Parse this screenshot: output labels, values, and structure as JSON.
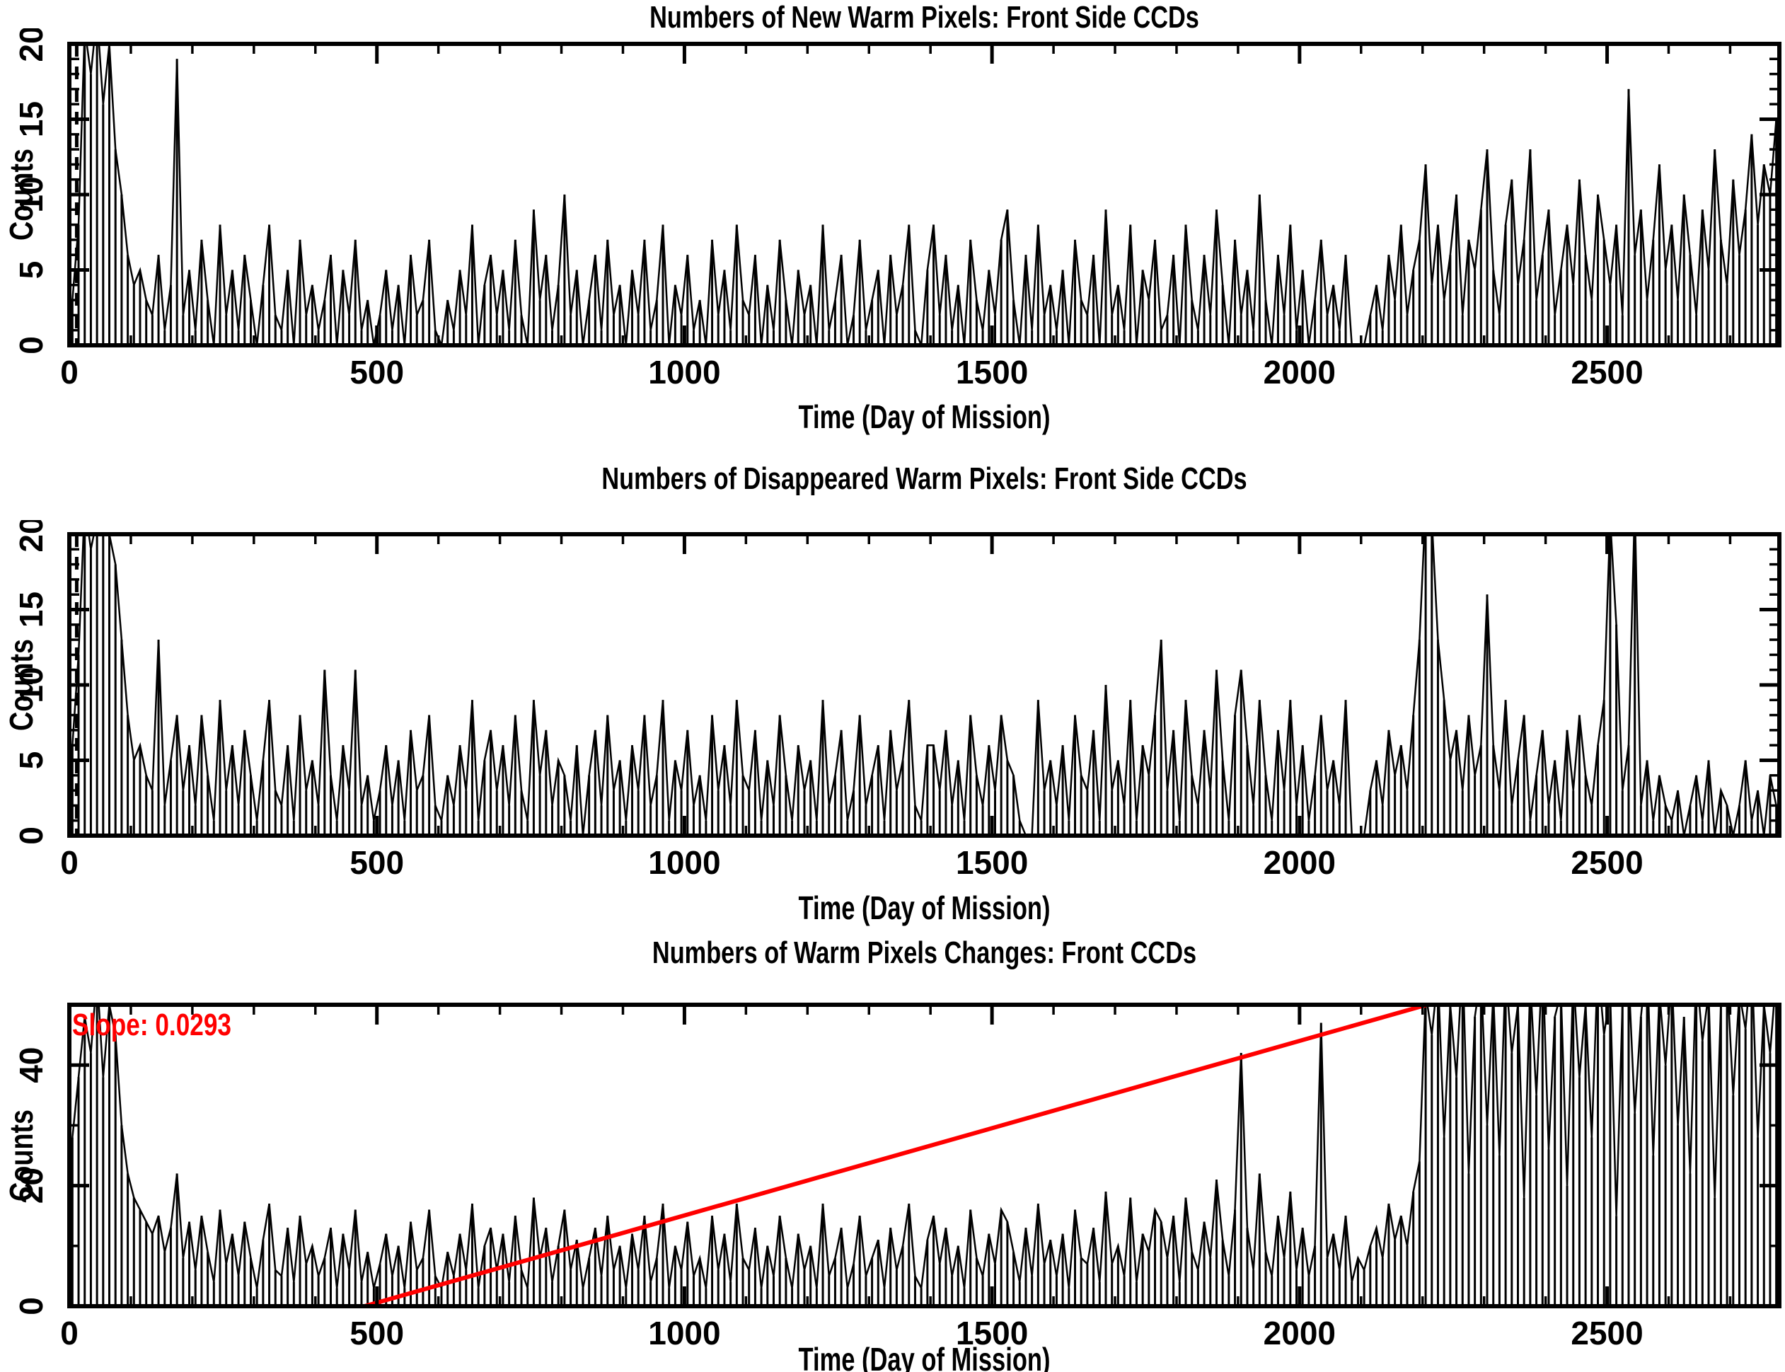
{
  "page": {
    "background": "#ffffff",
    "text_color": "#000000"
  },
  "chart_data": [
    {
      "type": "line",
      "title": "Numbers of New Warm Pixels: Front Side CCDs",
      "xlabel": "Time (Day of Mission)",
      "ylabel": "Counts",
      "xlim": [
        0,
        2780
      ],
      "ylim": [
        0,
        20
      ],
      "xticks": [
        0,
        500,
        1000,
        1500,
        2000,
        2500
      ],
      "x_minor_step": 100,
      "yticks": [
        0,
        5,
        10,
        15,
        20
      ],
      "y_minor_step": 1,
      "grid": false,
      "legend": "none",
      "dashed_guide_x": 12,
      "series_color": "#000000",
      "x_start": 5,
      "x_step": 10,
      "values": [
        3,
        8,
        21,
        18,
        22,
        16,
        20,
        13,
        10,
        6,
        4,
        5,
        3,
        2,
        6,
        1,
        4,
        19,
        2,
        5,
        1,
        7,
        3,
        0,
        8,
        2,
        5,
        1,
        6,
        3,
        0,
        4,
        8,
        2,
        1,
        5,
        0,
        7,
        2,
        4,
        1,
        3,
        6,
        0,
        5,
        2,
        7,
        1,
        3,
        0,
        2,
        5,
        1,
        4,
        0,
        6,
        2,
        3,
        7,
        1,
        0,
        3,
        1,
        5,
        2,
        8,
        0,
        4,
        6,
        2,
        5,
        1,
        7,
        2,
        0,
        9,
        3,
        6,
        1,
        4,
        10,
        2,
        5,
        0,
        3,
        6,
        1,
        7,
        2,
        4,
        0,
        5,
        2,
        7,
        1,
        3,
        8,
        0,
        4,
        2,
        6,
        1,
        3,
        0,
        7,
        2,
        5,
        1,
        8,
        3,
        2,
        6,
        0,
        4,
        1,
        7,
        3,
        0,
        5,
        2,
        4,
        0,
        8,
        1,
        3,
        6,
        0,
        2,
        7,
        1,
        3,
        5,
        0,
        6,
        2,
        4,
        8,
        1,
        0,
        5,
        8,
        2,
        6,
        1,
        4,
        0,
        7,
        3,
        1,
        5,
        2,
        7,
        9,
        3,
        0,
        6,
        1,
        8,
        2,
        4,
        1,
        5,
        0,
        7,
        3,
        2,
        6,
        0,
        9,
        2,
        4,
        1,
        8,
        0,
        5,
        3,
        7,
        1,
        2,
        6,
        0,
        8,
        3,
        1,
        6,
        2,
        9,
        4,
        0,
        7,
        2,
        5,
        1,
        10,
        3,
        0,
        6,
        2,
        8,
        1,
        5,
        0,
        3,
        7,
        2,
        4,
        1,
        6,
        0,
        0,
        0,
        2,
        4,
        1,
        6,
        3,
        8,
        2,
        5,
        7,
        12,
        4,
        8,
        3,
        6,
        10,
        2,
        7,
        5,
        9,
        13,
        5,
        2,
        8,
        11,
        4,
        7,
        13,
        3,
        6,
        9,
        2,
        5,
        8,
        4,
        11,
        6,
        3,
        10,
        7,
        4,
        8,
        2,
        17,
        6,
        9,
        3,
        7,
        12,
        5,
        8,
        3,
        10,
        6,
        2,
        9,
        5,
        13,
        7,
        4,
        11,
        6,
        9,
        14,
        8,
        12,
        10,
        15
      ]
    },
    {
      "type": "line",
      "title": "Numbers of Disappeared Warm Pixels: Front Side CCDs",
      "xlabel": "Time (Day of Mission)",
      "ylabel": "Counts",
      "xlim": [
        0,
        2780
      ],
      "ylim": [
        0,
        20
      ],
      "xticks": [
        0,
        500,
        1000,
        1500,
        2000,
        2500
      ],
      "x_minor_step": 100,
      "yticks": [
        0,
        5,
        10,
        15,
        20
      ],
      "y_minor_step": 1,
      "grid": false,
      "legend": "none",
      "dashed_guide_x": 12,
      "series_color": "#000000",
      "x_start": 5,
      "x_step": 10,
      "values": [
        6,
        12,
        22,
        19,
        21,
        25,
        20,
        18,
        13,
        8,
        5,
        6,
        4,
        3,
        13,
        2,
        5,
        8,
        3,
        6,
        2,
        8,
        4,
        1,
        9,
        3,
        6,
        2,
        7,
        4,
        1,
        5,
        9,
        3,
        2,
        6,
        1,
        8,
        3,
        5,
        2,
        11,
        4,
        1,
        6,
        3,
        11,
        2,
        4,
        1,
        3,
        6,
        2,
        5,
        1,
        7,
        3,
        4,
        8,
        2,
        1,
        4,
        2,
        6,
        3,
        9,
        1,
        5,
        7,
        3,
        6,
        2,
        8,
        3,
        1,
        9,
        4,
        7,
        2,
        5,
        4,
        1,
        6,
        0,
        4,
        7,
        2,
        8,
        3,
        5,
        1,
        6,
        3,
        8,
        2,
        4,
        9,
        1,
        5,
        3,
        7,
        2,
        4,
        1,
        8,
        3,
        6,
        2,
        9,
        4,
        3,
        7,
        1,
        5,
        2,
        8,
        4,
        1,
        6,
        3,
        5,
        1,
        9,
        2,
        4,
        7,
        1,
        3,
        8,
        2,
        4,
        6,
        1,
        7,
        3,
        5,
        9,
        2,
        1,
        6,
        6,
        3,
        7,
        2,
        5,
        1,
        8,
        4,
        2,
        6,
        3,
        8,
        5,
        4,
        1,
        0,
        0,
        9,
        3,
        5,
        2,
        6,
        1,
        8,
        4,
        3,
        7,
        1,
        10,
        3,
        5,
        2,
        9,
        1,
        6,
        4,
        8,
        13,
        3,
        7,
        1,
        9,
        4,
        2,
        7,
        3,
        11,
        5,
        1,
        8,
        11,
        6,
        2,
        9,
        4,
        1,
        7,
        3,
        9,
        2,
        6,
        1,
        4,
        8,
        3,
        5,
        2,
        9,
        0,
        0,
        0,
        3,
        5,
        2,
        7,
        4,
        6,
        3,
        8,
        13,
        22,
        21,
        13,
        9,
        5,
        7,
        3,
        8,
        4,
        6,
        16,
        6,
        3,
        9,
        2,
        5,
        8,
        1,
        4,
        7,
        2,
        5,
        1,
        7,
        3,
        8,
        4,
        2,
        6,
        9,
        21,
        14,
        3,
        6,
        22,
        2,
        5,
        1,
        4,
        2,
        1,
        3,
        0,
        2,
        4,
        1,
        5,
        0,
        3,
        2,
        0,
        2,
        5,
        1,
        3,
        0,
        4,
        2
      ]
    },
    {
      "type": "line",
      "title": "Numbers of Warm Pixels Changes: Front CCDs",
      "xlabel": "Time (Day of Mission)",
      "ylabel": "Counts",
      "xlim": [
        0,
        2780
      ],
      "ylim": [
        0,
        50
      ],
      "xticks": [
        0,
        500,
        1000,
        1500,
        2000,
        2500
      ],
      "x_minor_step": 100,
      "yticks": [
        0,
        20,
        40
      ],
      "y_minor_step": 10,
      "grid": false,
      "legend": "none",
      "series_color": "#000000",
      "fit_line": {
        "label": "Slope: 0.0293",
        "slope": 0.0293,
        "color": "#ff0000",
        "x0": 480,
        "y0": 0,
        "x1": 2207,
        "y1": 50
      },
      "x_start": 5,
      "x_step": 10,
      "values": [
        28,
        38,
        48,
        42,
        55,
        38,
        50,
        45,
        30,
        22,
        18,
        16,
        14,
        12,
        15,
        9,
        13,
        22,
        8,
        14,
        6,
        15,
        9,
        4,
        16,
        7,
        12,
        5,
        14,
        8,
        3,
        11,
        17,
        6,
        5,
        13,
        4,
        15,
        7,
        10,
        5,
        8,
        13,
        3,
        12,
        6,
        16,
        4,
        9,
        3,
        7,
        12,
        5,
        10,
        3,
        14,
        6,
        8,
        16,
        5,
        3,
        9,
        5,
        12,
        6,
        17,
        3,
        10,
        13,
        6,
        12,
        4,
        15,
        6,
        3,
        18,
        8,
        13,
        4,
        10,
        16,
        6,
        11,
        3,
        8,
        13,
        5,
        15,
        6,
        10,
        3,
        12,
        6,
        15,
        4,
        8,
        17,
        3,
        10,
        6,
        14,
        5,
        8,
        3,
        15,
        6,
        12,
        4,
        17,
        8,
        6,
        13,
        3,
        10,
        5,
        15,
        8,
        3,
        12,
        6,
        10,
        3,
        17,
        5,
        8,
        13,
        3,
        7,
        15,
        5,
        8,
        11,
        3,
        13,
        6,
        10,
        17,
        5,
        3,
        11,
        15,
        7,
        13,
        5,
        10,
        3,
        16,
        8,
        5,
        12,
        7,
        16,
        14,
        9,
        4,
        13,
        5,
        17,
        7,
        11,
        5,
        12,
        3,
        16,
        8,
        7,
        13,
        4,
        19,
        7,
        10,
        5,
        18,
        4,
        12,
        9,
        16,
        14,
        8,
        15,
        4,
        18,
        9,
        6,
        14,
        8,
        21,
        11,
        5,
        16,
        42,
        13,
        6,
        22,
        9,
        5,
        15,
        8,
        19,
        6,
        13,
        5,
        10,
        47,
        8,
        12,
        6,
        15,
        4,
        8,
        6,
        10,
        13,
        8,
        17,
        11,
        15,
        10,
        19,
        24,
        52,
        45,
        55,
        28,
        50,
        38,
        58,
        22,
        48,
        55,
        30,
        52,
        25,
        56,
        42,
        50,
        18,
        54,
        35,
        58,
        26,
        48,
        52,
        20,
        55,
        38,
        50,
        28,
        57,
        45,
        52,
        15,
        50,
        55,
        32,
        48,
        58,
        25,
        52,
        40,
        55,
        30,
        48,
        22,
        56,
        44,
        52,
        18,
        50,
        55,
        35,
        52,
        46,
        58,
        28,
        50,
        42,
        55
      ]
    }
  ]
}
